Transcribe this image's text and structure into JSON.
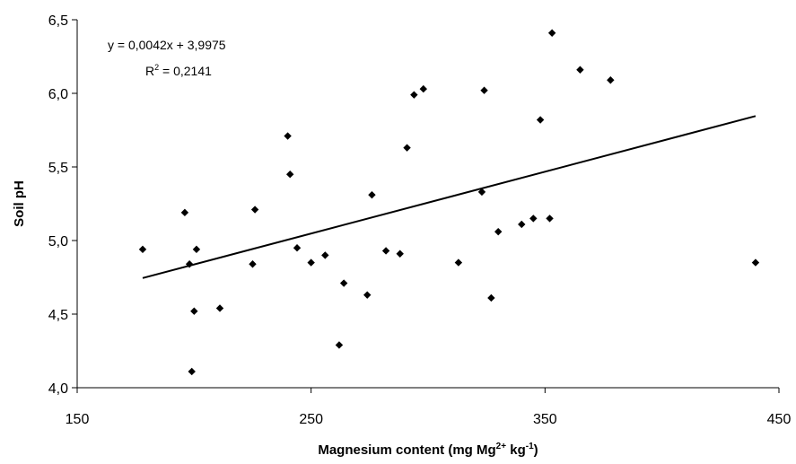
{
  "chart_data": {
    "type": "scatter",
    "xlabel": "Magnesium content (mg Mg",
    "xlabel_sup1": "2+",
    "xlabel_mid": " kg",
    "xlabel_sup2": "-1",
    "xlabel_end": ")",
    "ylabel": "Soil pH",
    "xlim": [
      150,
      450
    ],
    "ylim": [
      4.0,
      6.5
    ],
    "x_ticks": [
      150,
      250,
      350,
      450
    ],
    "x_tick_labels": [
      "150",
      "250",
      "350",
      "450"
    ],
    "y_ticks": [
      4.0,
      4.5,
      5.0,
      5.5,
      6.0,
      6.5
    ],
    "y_tick_labels": [
      "4,0",
      "4,5",
      "5,0",
      "5,5",
      "6,0",
      "6,5"
    ],
    "grid": false,
    "equation": "y = 0,0042x + 3,9975",
    "r2_base": "R",
    "r2_sup": "2",
    "r2_value": " = 0,2141",
    "trendline": {
      "slope": 0.0042,
      "intercept": 3.9975,
      "x_start": 178,
      "x_end": 440
    },
    "marker_color": "#000000",
    "points": [
      {
        "x": 178,
        "y": 4.94
      },
      {
        "x": 196,
        "y": 5.19
      },
      {
        "x": 198,
        "y": 4.84
      },
      {
        "x": 199,
        "y": 4.11
      },
      {
        "x": 200,
        "y": 4.52
      },
      {
        "x": 201,
        "y": 4.94
      },
      {
        "x": 211,
        "y": 4.54
      },
      {
        "x": 225,
        "y": 4.84
      },
      {
        "x": 226,
        "y": 5.21
      },
      {
        "x": 240,
        "y": 5.71
      },
      {
        "x": 241,
        "y": 5.45
      },
      {
        "x": 244,
        "y": 4.95
      },
      {
        "x": 250,
        "y": 4.85
      },
      {
        "x": 256,
        "y": 4.9
      },
      {
        "x": 262,
        "y": 4.29
      },
      {
        "x": 264,
        "y": 4.71
      },
      {
        "x": 274,
        "y": 4.63
      },
      {
        "x": 276,
        "y": 5.31
      },
      {
        "x": 282,
        "y": 4.93
      },
      {
        "x": 288,
        "y": 4.91
      },
      {
        "x": 291,
        "y": 5.63
      },
      {
        "x": 294,
        "y": 5.99
      },
      {
        "x": 298,
        "y": 6.03
      },
      {
        "x": 313,
        "y": 4.85
      },
      {
        "x": 323,
        "y": 5.33
      },
      {
        "x": 324,
        "y": 6.02
      },
      {
        "x": 327,
        "y": 4.61
      },
      {
        "x": 330,
        "y": 5.06
      },
      {
        "x": 340,
        "y": 5.11
      },
      {
        "x": 345,
        "y": 5.15
      },
      {
        "x": 348,
        "y": 5.82
      },
      {
        "x": 352,
        "y": 5.15
      },
      {
        "x": 353,
        "y": 6.41
      },
      {
        "x": 365,
        "y": 6.16
      },
      {
        "x": 378,
        "y": 6.09
      },
      {
        "x": 440,
        "y": 4.85
      }
    ]
  }
}
